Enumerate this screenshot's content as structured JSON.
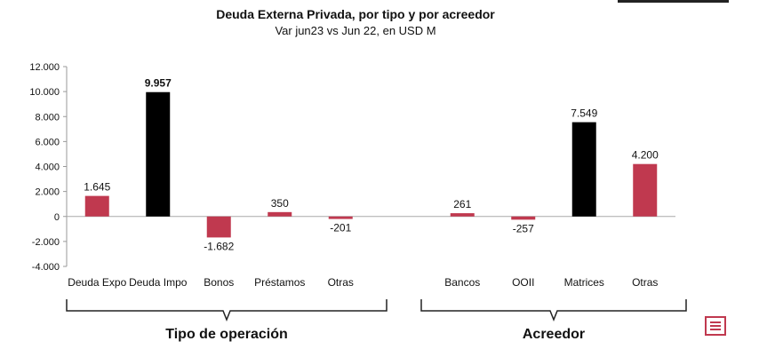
{
  "chart_data": {
    "type": "bar",
    "title": "Deuda Externa Privada, por tipo y por acreedor",
    "subtitle": "Var jun23 vs Jun 22, en USD M",
    "ylim": [
      -4000,
      12000
    ],
    "yticks": [
      -4000,
      -2000,
      0,
      2000,
      4000,
      6000,
      8000,
      10000,
      12000
    ],
    "ytick_labels": [
      "-4.000",
      "-2.000",
      "0",
      "2.000",
      "4.000",
      "6.000",
      "8.000",
      "10.000",
      "12.000"
    ],
    "groups": [
      {
        "label": "Tipo de operación",
        "categories": [
          "Deuda Expo",
          "Deuda Impo",
          "Bonos",
          "Préstamos",
          "Otras"
        ],
        "values": [
          1645,
          9957,
          -1682,
          350,
          -201
        ],
        "value_labels": [
          "1.645",
          "9.957",
          "-1.682",
          "350",
          "-201"
        ],
        "colors": [
          "#c0394f",
          "#000000",
          "#c0394f",
          "#c0394f",
          "#c0394f"
        ],
        "bold_labels": [
          false,
          true,
          false,
          false,
          false
        ]
      },
      {
        "label": "Acreedor",
        "categories": [
          "Bancos",
          "OOII",
          "Matrices",
          "Otras"
        ],
        "values": [
          261,
          -257,
          7549,
          4200
        ],
        "value_labels": [
          "261",
          "-257",
          "7.549",
          "4.200"
        ],
        "colors": [
          "#c0394f",
          "#c0394f",
          "#000000",
          "#c0394f"
        ],
        "bold_labels": [
          false,
          false,
          false,
          false
        ]
      }
    ],
    "grid": false,
    "legend": "none"
  },
  "colors": {
    "accent": "#c0394f",
    "highlight": "#000000"
  },
  "logo_icon": "document-icon"
}
